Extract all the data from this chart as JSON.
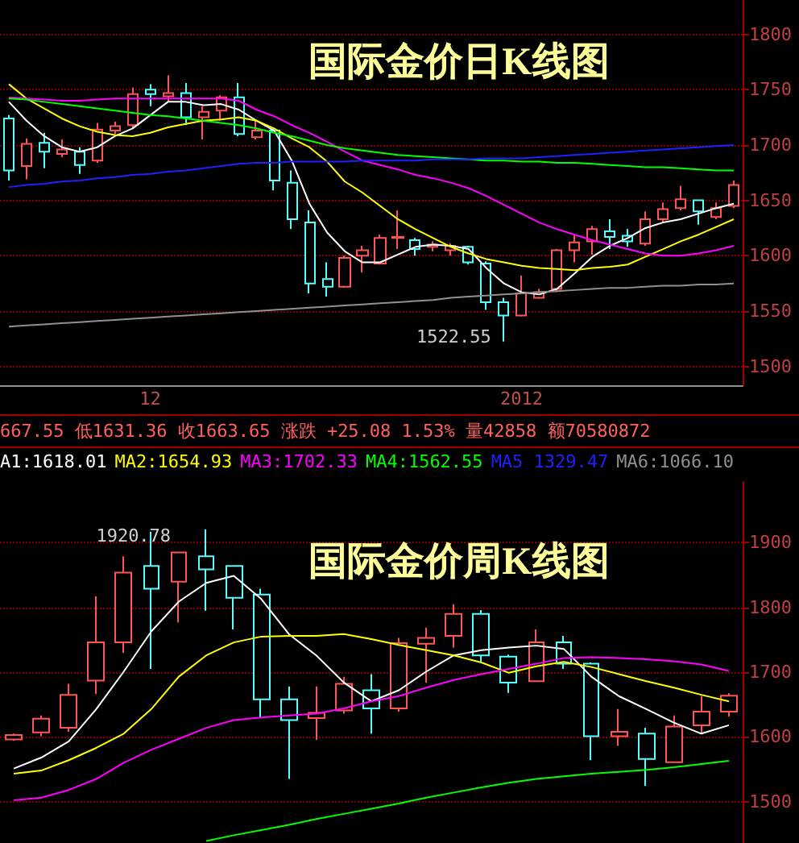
{
  "chart_data": [
    {
      "type": "candlestick",
      "title": "国际金价日K线图",
      "categories": [
        null,
        null,
        null,
        null,
        null,
        null,
        null,
        null,
        "12",
        null,
        null,
        null,
        null,
        null,
        null,
        null,
        null,
        null,
        null,
        null,
        null,
        null,
        null,
        null,
        null,
        null,
        null,
        null,
        null,
        "2012",
        null,
        null,
        null,
        null,
        null,
        null,
        null,
        null,
        null,
        null,
        null,
        null
      ],
      "ohlc": [
        [
          1724,
          1727,
          1668,
          1677
        ],
        [
          1681,
          1706,
          1669,
          1701
        ],
        [
          1702,
          1711,
          1679,
          1694
        ],
        [
          1692,
          1705,
          1689,
          1696
        ],
        [
          1694,
          1698,
          1674,
          1682
        ],
        [
          1686,
          1720,
          1684,
          1714
        ],
        [
          1713,
          1721,
          1710,
          1717
        ],
        [
          1718,
          1752,
          1715,
          1746
        ],
        [
          1750,
          1755,
          1735,
          1746
        ],
        [
          1744,
          1763,
          1739,
          1747
        ],
        [
          1747,
          1756,
          1718,
          1725
        ],
        [
          1725,
          1735,
          1705,
          1730
        ],
        [
          1731,
          1745,
          1722,
          1743
        ],
        [
          1743,
          1756,
          1708,
          1710
        ],
        [
          1707,
          1722,
          1705,
          1713
        ],
        [
          1713,
          1715,
          1659,
          1668
        ],
        [
          1666,
          1677,
          1624,
          1633
        ],
        [
          1630,
          1641,
          1566,
          1575
        ],
        [
          1579,
          1594,
          1563,
          1572
        ],
        [
          1572,
          1600,
          1571,
          1598
        ],
        [
          1600,
          1609,
          1585,
          1605
        ],
        [
          1593,
          1619,
          1592,
          1616
        ],
        [
          1616,
          1641,
          1606,
          1617
        ],
        [
          1614,
          1616,
          1600,
          1606
        ],
        [
          1608,
          1613,
          1604,
          1610
        ],
        [
          1605,
          1611,
          1600,
          1609
        ],
        [
          1608,
          1609,
          1592,
          1594
        ],
        [
          1593,
          1595,
          1551,
          1558
        ],
        [
          1558,
          1562,
          1522.55,
          1546
        ],
        [
          1546,
          1582,
          1545,
          1566
        ],
        [
          1562,
          1570,
          1561,
          1567
        ],
        [
          1570,
          1606,
          1567,
          1605
        ],
        [
          1605,
          1619,
          1594,
          1612
        ],
        [
          1613,
          1627,
          1601,
          1624
        ],
        [
          1622,
          1633,
          1606,
          1617
        ],
        [
          1618,
          1624,
          1608,
          1613
        ],
        [
          1611,
          1640,
          1609,
          1633
        ],
        [
          1633,
          1648,
          1630,
          1642
        ],
        [
          1643,
          1663,
          1641,
          1651
        ],
        [
          1650,
          1650,
          1628,
          1640
        ],
        [
          1635,
          1648,
          1633,
          1643
        ],
        [
          1645,
          1668,
          1643,
          1664
        ]
      ],
      "colors": [
        "#54ffff",
        "#ff5454",
        "#54ffff",
        "#ff5454",
        "#54ffff",
        "#ff5454",
        "#ff5454",
        "#ff5454",
        "#54ffff",
        "#ff5454",
        "#54ffff",
        "#ff5454",
        "#ff5454",
        "#54ffff",
        "#ff5454",
        "#54ffff",
        "#54ffff",
        "#54ffff",
        "#54ffff",
        "#ff5454",
        "#ff5454",
        "#ff5454",
        "#ff5454",
        "#54ffff",
        "#ff5454",
        "#ff5454",
        "#54ffff",
        "#54ffff",
        "#54ffff",
        "#ff5454",
        "#ff5454",
        "#ff5454",
        "#ff5454",
        "#ff5454",
        "#54ffff",
        "#54ffff",
        "#ff5454",
        "#ff5454",
        "#ff5454",
        "#54ffff",
        "#ff5454",
        "#ff5454"
      ],
      "series": [
        {
          "type": "line",
          "color": "#ffffff",
          "values": [
            1739,
            1722,
            1708,
            1698,
            1694,
            1698,
            1708,
            1715,
            1727,
            1739,
            1739,
            1736,
            1737,
            1732,
            1722,
            1713,
            1686,
            1647,
            1621,
            1604,
            1594,
            1594,
            1601,
            1608,
            1610,
            1609,
            1606,
            1589,
            1575,
            1567,
            1565,
            1570,
            1584,
            1599,
            1609,
            1616,
            1625,
            1630,
            1633,
            1638,
            1643,
            1647
          ]
        },
        {
          "type": "line",
          "color": "#ffff00",
          "values": [
            1755,
            1742,
            1733,
            1724,
            1717,
            1712,
            1709,
            1708,
            1711,
            1716,
            1719,
            1722,
            1723,
            1725,
            1722,
            1715,
            1706,
            1698,
            1685,
            1667,
            1657,
            1645,
            1633,
            1624,
            1616,
            1608,
            1602,
            1597,
            1594,
            1591,
            1589,
            1588,
            1587,
            1589,
            1590,
            1592,
            1599,
            1606,
            1613,
            1619,
            1626,
            1633
          ]
        },
        {
          "type": "line",
          "color": "#ff00ff",
          "values": [
            1743,
            1742,
            1741,
            1740,
            1740,
            1741,
            1742,
            1742,
            1742,
            1742,
            1742,
            1742,
            1742,
            1740,
            1732,
            1726,
            1718,
            1711,
            1703,
            1694,
            1686,
            1682,
            1678,
            1673,
            1670,
            1666,
            1661,
            1654,
            1646,
            1638,
            1630,
            1624,
            1619,
            1614,
            1610,
            1606,
            1602,
            1600,
            1600,
            1602,
            1605,
            1609
          ]
        },
        {
          "type": "line",
          "color": "#00ff00",
          "values": [
            1742,
            1741,
            1739,
            1737,
            1735,
            1733,
            1731,
            1729,
            1727,
            1726,
            1724,
            1722,
            1720,
            1718,
            1715,
            1711,
            1708,
            1704,
            1700,
            1697,
            1695,
            1693,
            1691,
            1690,
            1689,
            1688,
            1687,
            1686,
            1686,
            1685,
            1685,
            1684,
            1684,
            1683,
            1682,
            1681,
            1680,
            1680,
            1679,
            1678,
            1677,
            1677
          ]
        },
        {
          "type": "line",
          "color": "#2020ff",
          "values": [
            1662,
            1664,
            1665,
            1667,
            1668,
            1670,
            1671,
            1673,
            1674,
            1676,
            1677,
            1679,
            1681,
            1683,
            1684,
            1684,
            1685,
            1685,
            1685,
            1685,
            1686,
            1686,
            1686,
            1686,
            1687,
            1687,
            1687,
            1688,
            1688,
            1688,
            1689,
            1690,
            1691,
            1692,
            1693,
            1694,
            1695,
            1696,
            1697,
            1698,
            1699,
            1700
          ]
        },
        {
          "type": "line",
          "color": "#909090",
          "values": [
            1536,
            1537,
            1538,
            1539,
            1540,
            1541,
            1542,
            1543,
            1544,
            1545,
            1546,
            1547,
            1548,
            1549,
            1550,
            1551,
            1552,
            1553,
            1554,
            1555,
            1556,
            1557,
            1558,
            1559,
            1560,
            1562,
            1563,
            1564,
            1565,
            1566,
            1567,
            1568,
            1569,
            1570,
            1571,
            1571,
            1572,
            1573,
            1573,
            1574,
            1574,
            1575
          ]
        }
      ],
      "ylim": [
        1483,
        1831
      ],
      "yticks": [
        1500,
        1550,
        1600,
        1650,
        1700,
        1750,
        1800
      ],
      "grid": "y",
      "marker": "none",
      "annotations": [
        "1522.55"
      ]
    },
    {
      "type": "candlestick",
      "title": "国际金价周K线图",
      "categories": [
        null,
        null,
        null,
        null,
        null,
        null,
        null,
        null,
        null,
        null,
        null,
        null,
        null,
        null,
        null,
        null,
        null,
        null,
        null,
        null,
        null,
        null,
        null,
        null,
        null,
        null,
        null
      ],
      "ohlc": [
        [
          1596,
          1605,
          1594,
          1603
        ],
        [
          1607,
          1633,
          1601,
          1628
        ],
        [
          1614,
          1682,
          1608,
          1665
        ],
        [
          1687,
          1817,
          1666,
          1746
        ],
        [
          1746,
          1879,
          1730,
          1854
        ],
        [
          1864,
          1917,
          1705,
          1829
        ],
        [
          1840,
          1885,
          1777,
          1885
        ],
        [
          1879,
          1920.78,
          1795,
          1859
        ],
        [
          1864,
          1864,
          1766,
          1815
        ],
        [
          1820,
          1829,
          1630,
          1658
        ],
        [
          1658,
          1678,
          1535,
          1626
        ],
        [
          1629,
          1678,
          1595,
          1637
        ],
        [
          1641,
          1693,
          1636,
          1682
        ],
        [
          1672,
          1697,
          1605,
          1644
        ],
        [
          1644,
          1753,
          1639,
          1745
        ],
        [
          1744,
          1769,
          1684,
          1753
        ],
        [
          1756,
          1805,
          1738,
          1790
        ],
        [
          1790,
          1796,
          1715,
          1726
        ],
        [
          1724,
          1727,
          1668,
          1684
        ],
        [
          1686,
          1766,
          1686,
          1746
        ],
        [
          1746,
          1756,
          1705,
          1713
        ],
        [
          1713,
          1715,
          1564,
          1601
        ],
        [
          1601,
          1643,
          1586,
          1608
        ],
        [
          1605,
          1614,
          1524,
          1566
        ],
        [
          1561,
          1633,
          1561,
          1616
        ],
        [
          1618,
          1663,
          1605,
          1639
        ],
        [
          1639,
          1667.55,
          1631.36,
          1663.65
        ]
      ],
      "colors": [
        "#ff5454",
        "#ff5454",
        "#ff5454",
        "#ff5454",
        "#ff5454",
        "#54ffff",
        "#ff5454",
        "#54ffff",
        "#54ffff",
        "#54ffff",
        "#54ffff",
        "#ff5454",
        "#ff5454",
        "#54ffff",
        "#ff5454",
        "#ff5454",
        "#ff5454",
        "#54ffff",
        "#54ffff",
        "#ff5454",
        "#54ffff",
        "#54ffff",
        "#ff5454",
        "#54ffff",
        "#ff5454",
        "#ff5454",
        "#ff5454"
      ],
      "series": [
        {
          "type": "line",
          "color": "#ffffff",
          "values": [
            1551,
            1568,
            1593,
            1643,
            1701,
            1763,
            1809,
            1838,
            1849,
            1813,
            1759,
            1726,
            1684,
            1655,
            1672,
            1701,
            1726,
            1734,
            1738,
            1741,
            1736,
            1693,
            1663,
            1643,
            1622,
            1605,
            1618
          ]
        },
        {
          "type": "line",
          "color": "#ffff00",
          "values": [
            1543,
            1548,
            1564,
            1583,
            1605,
            1643,
            1693,
            1726,
            1746,
            1755,
            1756,
            1756,
            1759,
            1751,
            1742,
            1734,
            1726,
            1715,
            1699,
            1709,
            1716,
            1708,
            1697,
            1686,
            1676,
            1665,
            1655
          ]
        },
        {
          "type": "line",
          "color": "#ff00ff",
          "values": [
            1502,
            1506,
            1518,
            1535,
            1560,
            1580,
            1597,
            1614,
            1626,
            1630,
            1633,
            1636,
            1644,
            1655,
            1663,
            1676,
            1688,
            1697,
            1705,
            1713,
            1722,
            1723,
            1722,
            1720,
            1717,
            1712,
            1702
          ]
        },
        {
          "type": "line",
          "color": "#00ff00",
          "values": [
            null,
            null,
            null,
            null,
            null,
            null,
            null,
            1439,
            1448,
            1456,
            1464,
            1473,
            1481,
            1489,
            1497,
            1506,
            1514,
            1522,
            1529,
            1535,
            1539,
            1543,
            1546,
            1549,
            1553,
            1558,
            1563
          ]
        }
      ],
      "ylim": [
        1436,
        1994
      ],
      "yticks": [
        1500,
        1600,
        1700,
        1800,
        1900
      ],
      "grid": "y",
      "marker": "none",
      "annotations": [
        "667.55 低1631.36 收1663.65 涨跌  +25.08 1.53% 量42858 额70580872",
        "A1:1618.01",
        "MA2:1654.93",
        "MA3:1702.33",
        "MA4:1562.55",
        "MA5 1329.47",
        "MA6:1066.10",
        "1920.78"
      ]
    }
  ]
}
